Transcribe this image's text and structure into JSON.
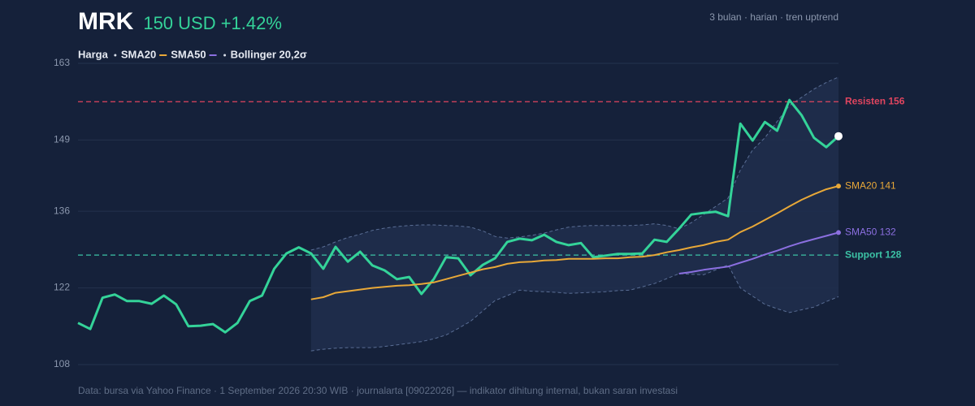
{
  "chart_data": {
    "type": "line",
    "title": "MRK",
    "subtitle": "150 USD +1.42%",
    "note": "3 bulan · harian · tren uptrend",
    "source": "Data: bursa via Yahoo Finance · 1 September 2026 20:30 WIB · journalarta [09022026] — indikator dihitung internal, bukan saran investasi",
    "ylim": [
      108,
      163
    ],
    "yticks": [
      108,
      122,
      136,
      149,
      163
    ],
    "grid": true,
    "series": [
      {
        "name": "Harga",
        "color": "#34d399",
        "values": [
          115.6,
          114.5,
          120.2,
          120.8,
          119.6,
          119.6,
          119.1,
          120.6,
          119.0,
          115.0,
          115.1,
          115.4,
          113.9,
          115.6,
          119.6,
          120.6,
          125.5,
          128.3,
          129.4,
          128.3,
          125.5,
          129.5,
          126.8,
          128.6,
          126.1,
          125.2,
          123.6,
          124.0,
          120.9,
          123.6,
          127.6,
          127.4,
          124.3,
          126.2,
          127.4,
          130.4,
          131.0,
          130.7,
          131.7,
          130.4,
          129.8,
          130.2,
          127.6,
          127.9,
          128.2,
          128.2,
          128.3,
          130.8,
          130.4,
          132.8,
          135.4,
          135.7,
          135.9,
          135.1,
          152.0,
          148.9,
          152.3,
          150.7,
          156.3,
          153.5,
          149.4,
          147.7,
          149.7
        ]
      },
      {
        "name": "SMA20",
        "color": "#e8a838",
        "end_label": "SMA20 141",
        "values": [
          null,
          null,
          null,
          null,
          null,
          null,
          null,
          null,
          null,
          null,
          null,
          null,
          null,
          null,
          null,
          null,
          null,
          null,
          null,
          119.9,
          120.3,
          121.1,
          121.4,
          121.7,
          122.0,
          122.2,
          122.4,
          122.5,
          122.7,
          123.0,
          123.6,
          124.2,
          124.8,
          125.4,
          125.8,
          126.4,
          126.7,
          126.8,
          127.0,
          127.1,
          127.3,
          127.3,
          127.3,
          127.4,
          127.4,
          127.6,
          127.7,
          128.0,
          128.5,
          128.9,
          129.4,
          129.8,
          130.4,
          130.8,
          132.2,
          133.2,
          134.4,
          135.6,
          136.9,
          138.1,
          139.1,
          140.0,
          140.6
        ]
      },
      {
        "name": "SMA50",
        "color": "#8b6fe0",
        "end_label": "SMA50 132",
        "values": [
          null,
          null,
          null,
          null,
          null,
          null,
          null,
          null,
          null,
          null,
          null,
          null,
          null,
          null,
          null,
          null,
          null,
          null,
          null,
          null,
          null,
          null,
          null,
          null,
          null,
          null,
          null,
          null,
          null,
          null,
          null,
          null,
          null,
          null,
          null,
          null,
          null,
          null,
          null,
          null,
          null,
          null,
          null,
          null,
          null,
          null,
          null,
          null,
          null,
          124.6,
          124.9,
          125.3,
          125.6,
          125.9,
          126.6,
          127.3,
          128.1,
          128.8,
          129.6,
          130.3,
          130.9,
          131.5,
          132.1
        ]
      },
      {
        "name": "Bollinger 20,2σ",
        "color": "#5a6e95",
        "band": true,
        "upper": [
          null,
          null,
          null,
          null,
          null,
          null,
          null,
          null,
          null,
          null,
          null,
          null,
          null,
          null,
          null,
          null,
          null,
          null,
          null,
          128.9,
          129.5,
          130.4,
          131.2,
          131.8,
          132.5,
          132.9,
          133.2,
          133.4,
          133.5,
          133.5,
          133.4,
          133.3,
          133.1,
          132.4,
          131.4,
          131.1,
          131.3,
          131.6,
          132.0,
          132.6,
          133.1,
          133.3,
          133.4,
          133.4,
          133.4,
          133.4,
          133.5,
          133.7,
          133.4,
          132.8,
          133.9,
          135.4,
          136.9,
          138.4,
          143.5,
          147.2,
          149.4,
          152.4,
          155.3,
          156.8,
          158.3,
          159.5,
          160.5
        ],
        "lower": [
          null,
          null,
          null,
          null,
          null,
          null,
          null,
          null,
          null,
          null,
          null,
          null,
          null,
          null,
          null,
          null,
          null,
          null,
          null,
          110.5,
          110.8,
          111.0,
          111.1,
          111.1,
          111.1,
          111.3,
          111.6,
          111.9,
          112.2,
          112.7,
          113.4,
          114.6,
          115.9,
          117.8,
          119.7,
          120.6,
          121.6,
          121.4,
          121.3,
          121.2,
          121.0,
          121.1,
          121.2,
          121.3,
          121.5,
          121.6,
          122.2,
          122.8,
          123.7,
          124.6,
          124.5,
          124.4,
          125.3,
          126.2,
          122.0,
          120.5,
          119.0,
          118.2,
          117.5,
          118.0,
          118.5,
          119.5,
          120.4
        ]
      }
    ],
    "hlines": [
      {
        "value": 156,
        "label": "Resisten 156",
        "color": "#e0455f"
      },
      {
        "value": 128,
        "label": "Support 128",
        "color": "#3cc2a5"
      }
    ]
  }
}
